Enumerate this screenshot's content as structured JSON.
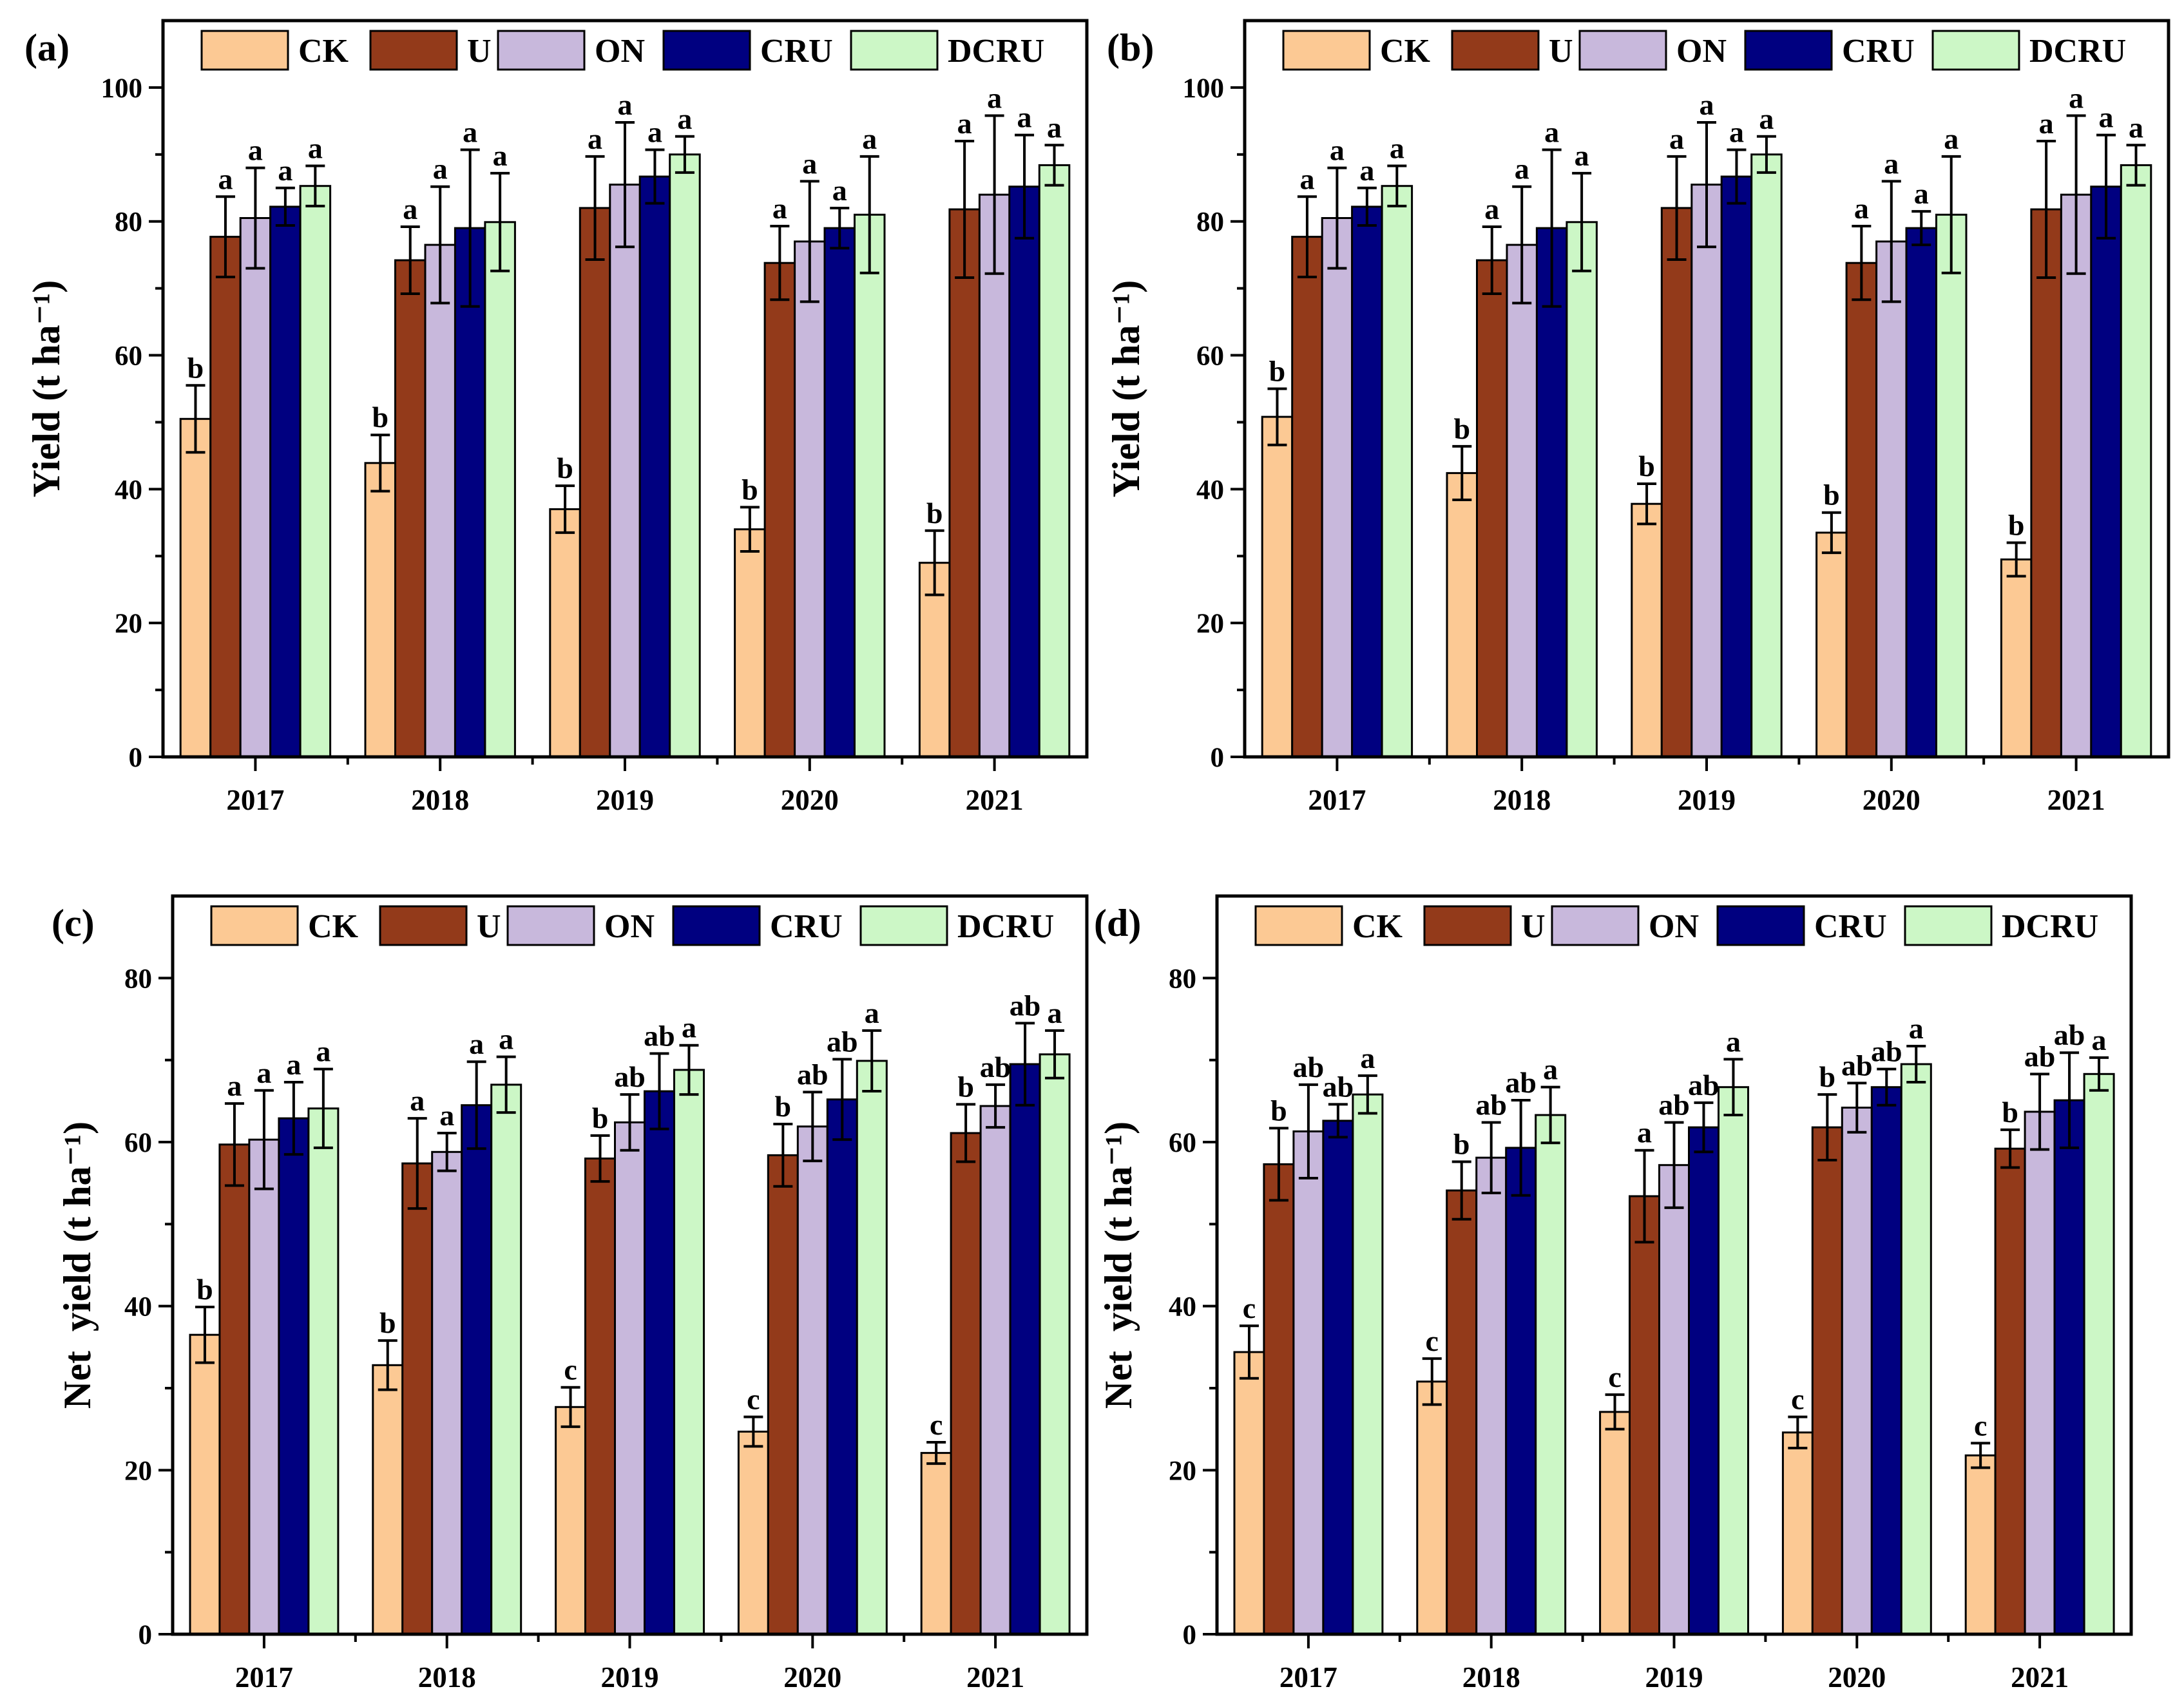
{
  "chart_data": [
    {
      "type": "bar",
      "panel_label": "(a)",
      "ylabel": "Yield (t ha⁻¹)",
      "ylim": [
        0,
        110
      ],
      "yticks": [
        0,
        20,
        40,
        60,
        80,
        100
      ],
      "categories": [
        "2017",
        "2018",
        "2019",
        "2020",
        "2021"
      ],
      "series": [
        {
          "name": "CK",
          "color": "#FCC994",
          "values": [
            50.5,
            43.9,
            37.0,
            34.0,
            29.0
          ],
          "errors": [
            5.0,
            4.2,
            3.5,
            3.3,
            4.8
          ],
          "letters": [
            "b",
            "b",
            "b",
            "b",
            "b"
          ]
        },
        {
          "name": "U",
          "color": "#933A1A",
          "values": [
            77.7,
            74.2,
            82.0,
            73.8,
            81.8
          ],
          "errors": [
            6.0,
            5.0,
            7.7,
            5.5,
            10.2
          ],
          "letters": [
            "a",
            "a",
            "a",
            "a",
            "a"
          ]
        },
        {
          "name": "ON",
          "color": "#C8B8DC",
          "values": [
            80.5,
            76.5,
            85.5,
            77.0,
            84.0
          ],
          "errors": [
            7.5,
            8.7,
            9.3,
            9.0,
            11.8
          ],
          "letters": [
            "a",
            "a",
            "a",
            "a",
            "a"
          ]
        },
        {
          "name": "CRU",
          "color": "#000080",
          "values": [
            82.2,
            79.0,
            86.7,
            79.0,
            85.2
          ],
          "errors": [
            2.8,
            11.7,
            4.0,
            3.0,
            7.7
          ],
          "letters": [
            "a",
            "a",
            "a",
            "a",
            "a"
          ]
        },
        {
          "name": "DCRU",
          "color": "#CCF7C6",
          "values": [
            85.3,
            79.9,
            90.0,
            81.0,
            88.4
          ],
          "errors": [
            3.0,
            7.3,
            2.7,
            8.7,
            3.0
          ],
          "letters": [
            "a",
            "a",
            "a",
            "a",
            "a"
          ]
        }
      ]
    },
    {
      "type": "bar",
      "panel_label": "(b)",
      "ylabel": "Yield (t ha⁻¹)",
      "ylim": [
        0,
        110
      ],
      "yticks": [
        0,
        20,
        40,
        60,
        80,
        100
      ],
      "categories": [
        "2017",
        "2018",
        "2019",
        "2020",
        "2021"
      ],
      "series": [
        {
          "name": "CK",
          "color": "#FCC994",
          "values": [
            50.8,
            42.4,
            37.8,
            33.5,
            29.5
          ],
          "errors": [
            4.2,
            4.0,
            3.0,
            3.0,
            2.5
          ],
          "letters": [
            "b",
            "b",
            "b",
            "b",
            "b"
          ]
        },
        {
          "name": "U",
          "color": "#933A1A",
          "values": [
            77.7,
            74.2,
            82.0,
            73.8,
            81.8
          ],
          "errors": [
            6.0,
            5.0,
            7.7,
            5.5,
            10.2
          ],
          "letters": [
            "a",
            "a",
            "a",
            "a",
            "a"
          ]
        },
        {
          "name": "ON",
          "color": "#C8B8DC",
          "values": [
            80.5,
            76.5,
            85.5,
            77.0,
            84.0
          ],
          "errors": [
            7.5,
            8.7,
            9.3,
            9.0,
            11.8
          ],
          "letters": [
            "a",
            "a",
            "a",
            "a",
            "a"
          ]
        },
        {
          "name": "CRU",
          "color": "#000080",
          "values": [
            82.2,
            79.0,
            86.7,
            79.0,
            85.2
          ],
          "errors": [
            2.8,
            11.7,
            4.0,
            2.5,
            7.7
          ],
          "letters": [
            "a",
            "a",
            "a",
            "a",
            "a"
          ]
        },
        {
          "name": "DCRU",
          "color": "#CCF7C6",
          "values": [
            85.3,
            79.9,
            90.0,
            81.0,
            88.4
          ],
          "errors": [
            3.0,
            7.3,
            2.7,
            8.7,
            3.0
          ],
          "letters": [
            "a",
            "a",
            "a",
            "a",
            "a"
          ]
        }
      ]
    },
    {
      "type": "bar",
      "panel_label": "(c)",
      "ylabel": "Net  yield (t ha⁻¹)",
      "ylim": [
        0,
        90
      ],
      "yticks": [
        0,
        20,
        40,
        60,
        80
      ],
      "categories": [
        "2017",
        "2018",
        "2019",
        "2020",
        "2021"
      ],
      "series": [
        {
          "name": "CK",
          "color": "#FCC994",
          "values": [
            36.5,
            32.8,
            27.7,
            24.7,
            22.1
          ],
          "errors": [
            3.4,
            3.0,
            2.4,
            1.8,
            1.3
          ],
          "letters": [
            "b",
            "b",
            "c",
            "c",
            "c"
          ]
        },
        {
          "name": "U",
          "color": "#933A1A",
          "values": [
            59.7,
            57.4,
            58.0,
            58.4,
            61.1
          ],
          "errors": [
            5.0,
            5.5,
            2.8,
            3.8,
            3.5
          ],
          "letters": [
            "a",
            "a",
            "b",
            "b",
            "b"
          ]
        },
        {
          "name": "ON",
          "color": "#C8B8DC",
          "values": [
            60.3,
            58.8,
            62.4,
            61.9,
            64.4
          ],
          "errors": [
            6.0,
            2.3,
            3.4,
            4.2,
            2.6
          ],
          "letters": [
            "a",
            "a",
            "ab",
            "ab",
            "ab"
          ]
        },
        {
          "name": "CRU",
          "color": "#000080",
          "values": [
            62.9,
            64.5,
            66.2,
            65.2,
            69.5
          ],
          "errors": [
            4.4,
            5.3,
            4.6,
            4.9,
            5.0
          ],
          "letters": [
            "a",
            "a",
            "ab",
            "ab",
            "ab"
          ]
        },
        {
          "name": "DCRU",
          "color": "#CCF7C6",
          "values": [
            64.1,
            67.0,
            68.8,
            69.9,
            70.7
          ],
          "errors": [
            4.8,
            3.4,
            3.0,
            3.7,
            2.9
          ],
          "letters": [
            "a",
            "a",
            "a",
            "a",
            "a"
          ]
        }
      ]
    },
    {
      "type": "bar",
      "panel_label": "(d)",
      "ylabel": "Net  yield (t ha⁻¹)",
      "ylim": [
        0,
        90
      ],
      "yticks": [
        0,
        20,
        40,
        60,
        80
      ],
      "categories": [
        "2017",
        "2018",
        "2019",
        "2020",
        "2021"
      ],
      "series": [
        {
          "name": "CK",
          "color": "#FCC994",
          "values": [
            34.4,
            30.8,
            27.1,
            24.6,
            21.8
          ],
          "errors": [
            3.2,
            2.8,
            2.1,
            1.9,
            1.5
          ],
          "letters": [
            "c",
            "c",
            "c",
            "c",
            "c"
          ]
        },
        {
          "name": "U",
          "color": "#933A1A",
          "values": [
            57.3,
            54.1,
            53.4,
            61.8,
            59.2
          ],
          "errors": [
            4.4,
            3.5,
            5.6,
            4.0,
            2.3
          ],
          "letters": [
            "b",
            "b",
            "a",
            "b",
            "b"
          ]
        },
        {
          "name": "ON",
          "color": "#C8B8DC",
          "values": [
            61.3,
            58.1,
            57.2,
            64.2,
            63.7
          ],
          "errors": [
            5.7,
            4.3,
            5.2,
            3.0,
            4.6
          ],
          "letters": [
            "ab",
            "ab",
            "ab",
            "ab",
            "ab"
          ]
        },
        {
          "name": "CRU",
          "color": "#000080",
          "values": [
            62.6,
            59.3,
            61.8,
            66.7,
            65.1
          ],
          "errors": [
            2.0,
            5.8,
            3.0,
            2.2,
            5.8
          ],
          "letters": [
            "ab",
            "ab",
            "ab",
            "ab",
            "ab"
          ]
        },
        {
          "name": "DCRU",
          "color": "#CCF7C6",
          "values": [
            65.8,
            63.3,
            66.7,
            69.5,
            68.3
          ],
          "errors": [
            2.3,
            3.4,
            3.4,
            2.2,
            2.0
          ],
          "letters": [
            "a",
            "a",
            "a",
            "a",
            "a"
          ]
        }
      ]
    }
  ]
}
